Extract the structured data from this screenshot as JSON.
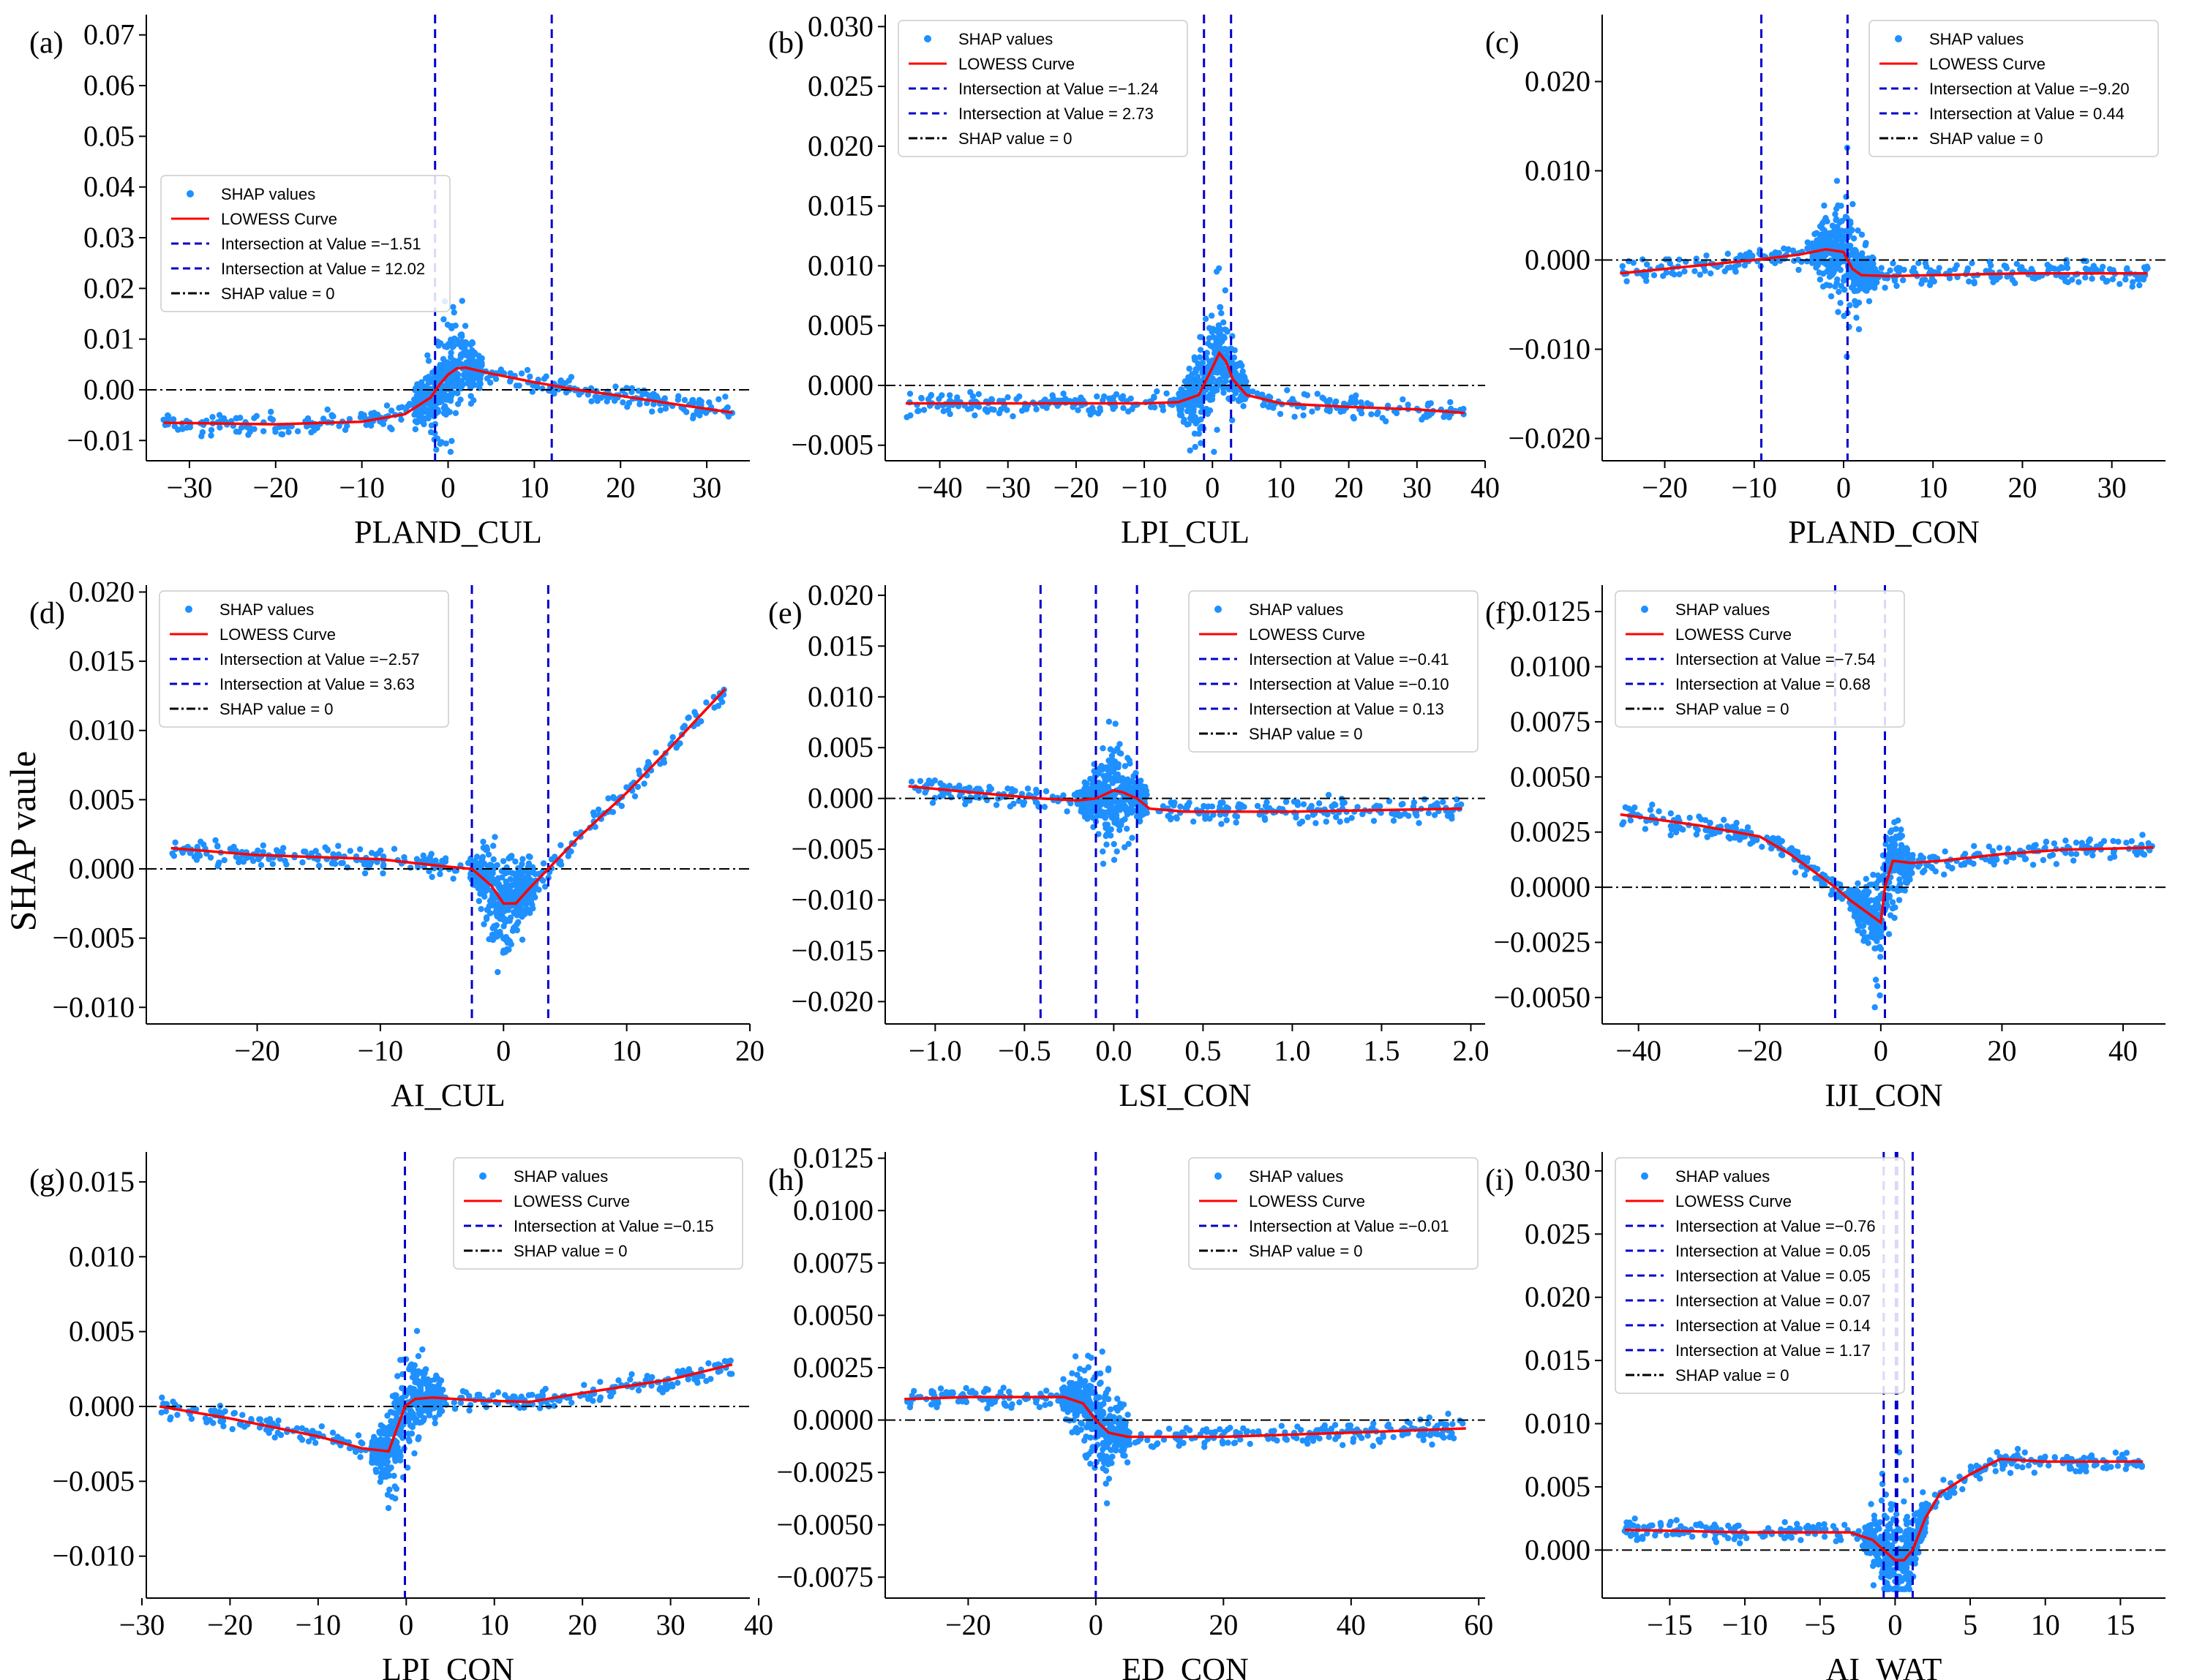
{
  "figure": {
    "ylabel": "SHAP vaule"
  },
  "chart_data": [
    {
      "type": "scatter",
      "label": "(a)",
      "xlabel": "PLAND_CUL",
      "xlim": [
        -35,
        35
      ],
      "ylim": [
        -0.014,
        0.074
      ],
      "xticks": [
        -30,
        -20,
        -10,
        0,
        10,
        20,
        30
      ],
      "yticks": [
        -0.01,
        0.0,
        0.01,
        0.02,
        0.03,
        0.04,
        0.05,
        0.06,
        0.07
      ],
      "ydec": 2,
      "intersections": [
        -1.51,
        12.02
      ],
      "intersection_labels": [
        "Intersection at Value =−1.51",
        "Intersection at Value = 12.02"
      ],
      "legend_loc": "left-middle",
      "lowess": {
        "x": [
          -33,
          -20,
          -10,
          -5,
          -2,
          -1,
          0,
          1,
          2,
          5,
          10,
          15,
          20,
          25,
          33
        ],
        "y": [
          -0.0065,
          -0.0068,
          -0.0063,
          -0.0048,
          -0.0015,
          0.001,
          0.003,
          0.0042,
          0.0044,
          0.0032,
          0.0015,
          0.0,
          -0.0012,
          -0.0025,
          -0.0045
        ]
      }
    },
    {
      "type": "scatter",
      "label": "(b)",
      "xlabel": "LPI_CUL",
      "xlim": [
        -48,
        40
      ],
      "ylim": [
        -0.0063,
        0.031
      ],
      "xticks": [
        -40,
        -30,
        -20,
        -10,
        0,
        10,
        20,
        30,
        40
      ],
      "yticks": [
        -0.005,
        0.0,
        0.005,
        0.01,
        0.015,
        0.02,
        0.025,
        0.03
      ],
      "ydec": 3,
      "intersections": [
        -1.24,
        2.73
      ],
      "intersection_labels": [
        "Intersection at Value =−1.24",
        "Intersection at Value = 2.73"
      ],
      "legend_loc": "upper-left",
      "lowess": {
        "x": [
          -45,
          -30,
          -20,
          -10,
          -5,
          -2,
          0,
          1,
          2,
          3,
          5,
          10,
          20,
          30,
          37
        ],
        "y": [
          -0.0015,
          -0.0015,
          -0.0015,
          -0.0015,
          -0.0014,
          -0.0008,
          0.0015,
          0.0027,
          0.002,
          0.0005,
          -0.0008,
          -0.0015,
          -0.0018,
          -0.002,
          -0.0023
        ]
      }
    },
    {
      "type": "scatter",
      "label": "(c)",
      "xlabel": "PLAND_CON",
      "xlim": [
        -27,
        36
      ],
      "ylim": [
        -0.0225,
        0.0275
      ],
      "xticks": [
        -20,
        -10,
        0,
        10,
        20,
        30
      ],
      "yticks": [
        -0.02,
        -0.01,
        0.0,
        0.01,
        0.02
      ],
      "ydec": 3,
      "intersections": [
        -9.2,
        0.44
      ],
      "intersection_labels": [
        "Intersection at Value =−9.20",
        "Intersection at Value = 0.44"
      ],
      "legend_loc": "upper-right",
      "lowess": {
        "x": [
          -25,
          -15,
          -10,
          -5,
          -2,
          0,
          0.44,
          1,
          2,
          5,
          10,
          20,
          34
        ],
        "y": [
          -0.0015,
          -0.0005,
          0.0,
          0.0006,
          0.0012,
          0.0009,
          0.0,
          -0.001,
          -0.0017,
          -0.0018,
          -0.0017,
          -0.0015,
          -0.0015
        ]
      }
    },
    {
      "type": "scatter",
      "label": "(d)",
      "xlabel": "AI_CUL",
      "xlim": [
        -29,
        20
      ],
      "ylim": [
        -0.0112,
        0.0205
      ],
      "xticks": [
        -20,
        -10,
        0,
        10,
        20
      ],
      "yticks": [
        -0.01,
        -0.005,
        0.0,
        0.005,
        0.01,
        0.015,
        0.02
      ],
      "ydec": 3,
      "intersections": [
        -2.57,
        3.63
      ],
      "intersection_labels": [
        "Intersection at Value =−2.57",
        "Intersection at Value = 3.63"
      ],
      "legend_loc": "upper-left",
      "lowess": {
        "x": [
          -27,
          -20,
          -10,
          -5,
          -2.57,
          -1,
          0,
          1,
          2,
          3.63,
          6,
          10,
          14,
          18
        ],
        "y": [
          0.0015,
          0.001,
          0.0007,
          0.0002,
          0.0,
          -0.0012,
          -0.0025,
          -0.0025,
          -0.0015,
          0.0,
          0.0022,
          0.0055,
          0.0092,
          0.013
        ]
      }
    },
    {
      "type": "scatter",
      "label": "(e)",
      "xlabel": "LSI_CON",
      "xlim": [
        -1.28,
        2.08
      ],
      "ylim": [
        -0.0222,
        0.021
      ],
      "xticks": [
        -1.0,
        -0.5,
        0.0,
        0.5,
        1.0,
        1.5,
        2.0
      ],
      "xdec": 1,
      "yticks": [
        -0.02,
        -0.015,
        -0.01,
        -0.005,
        0.0,
        0.005,
        0.01,
        0.015,
        0.02
      ],
      "ydec": 3,
      "intersections": [
        -0.41,
        -0.1,
        0.13
      ],
      "intersection_labels": [
        "Intersection at Value =−0.41",
        "Intersection at Value =−0.10",
        "Intersection at Value = 0.13"
      ],
      "legend_loc": "upper-right",
      "lowess": {
        "x": [
          -1.15,
          -0.8,
          -0.41,
          -0.2,
          -0.1,
          0.0,
          0.05,
          0.13,
          0.2,
          0.4,
          1.0,
          1.95
        ],
        "y": [
          0.0012,
          0.0006,
          0.0,
          -0.0002,
          0.0,
          0.0008,
          0.0006,
          0.0,
          -0.001,
          -0.0013,
          -0.0013,
          -0.001
        ]
      }
    },
    {
      "type": "scatter",
      "label": "(f)",
      "xlabel": "IJI_CON",
      "xlim": [
        -46,
        47
      ],
      "ylim": [
        -0.0062,
        0.0137
      ],
      "xticks": [
        -40,
        -20,
        0,
        20,
        40
      ],
      "yticks": [
        -0.005,
        -0.0025,
        0.0,
        0.0025,
        0.005,
        0.0075,
        0.01,
        0.0125
      ],
      "ydec": 4,
      "intersections": [
        -7.54,
        0.68
      ],
      "intersection_labels": [
        "Intersection at Value =−7.54",
        "Intersection at Value = 0.68"
      ],
      "legend_loc": "upper-left",
      "lowess": {
        "x": [
          -43,
          -30,
          -20,
          -15,
          -10,
          -7.54,
          -5,
          -2,
          0,
          0.68,
          2,
          5,
          10,
          20,
          30,
          45
        ],
        "y": [
          0.0033,
          0.0028,
          0.0023,
          0.0015,
          0.0005,
          0.0,
          -0.0006,
          -0.0012,
          -0.0016,
          0.0,
          0.0012,
          0.0011,
          0.0012,
          0.0015,
          0.0017,
          0.0018
        ]
      }
    },
    {
      "type": "scatter",
      "label": "(g)",
      "xlabel": "LPI_CON",
      "xlim": [
        -29.5,
        39
      ],
      "ylim": [
        -0.0128,
        0.017
      ],
      "xticks": [
        -30,
        -20,
        -10,
        0,
        10,
        20,
        30,
        40
      ],
      "yticks": [
        -0.01,
        -0.005,
        0.0,
        0.005,
        0.01,
        0.015
      ],
      "ydec": 3,
      "intersections": [
        -0.15
      ],
      "intersection_labels": [
        "Intersection at Value =−0.15"
      ],
      "legend_loc": "upper-right",
      "lowess": {
        "x": [
          -28,
          -20,
          -10,
          -5,
          -2,
          -0.15,
          1,
          3,
          8,
          14,
          20,
          30,
          37
        ],
        "y": [
          0.0,
          -0.0008,
          -0.002,
          -0.0028,
          -0.003,
          0.0,
          0.0005,
          0.0006,
          0.0004,
          0.0003,
          0.0009,
          0.0018,
          0.0028
        ]
      }
    },
    {
      "type": "scatter",
      "label": "(h)",
      "xlabel": "ED_CON",
      "xlim": [
        -33,
        61
      ],
      "ylim": [
        -0.0085,
        0.0128
      ],
      "xticks": [
        -20,
        0,
        20,
        40,
        60
      ],
      "yticks": [
        -0.0075,
        -0.005,
        -0.0025,
        0.0,
        0.0025,
        0.005,
        0.0075,
        0.01,
        0.0125
      ],
      "ydec": 4,
      "intersections": [
        -0.01
      ],
      "intersection_labels": [
        "Intersection at Value =−0.01"
      ],
      "legend_loc": "upper-right",
      "lowess": {
        "x": [
          -30,
          -20,
          -10,
          -5,
          -2,
          -0.01,
          2,
          5,
          10,
          20,
          40,
          58
        ],
        "y": [
          0.001,
          0.0011,
          0.0011,
          0.0011,
          0.0008,
          0.0,
          -0.0006,
          -0.0008,
          -0.0008,
          -0.0008,
          -0.0006,
          -0.0004
        ]
      }
    },
    {
      "type": "scatter",
      "label": "(i)",
      "xlabel": "AI_WAT",
      "xlim": [
        -19.5,
        18
      ],
      "ylim": [
        -0.0038,
        0.0315
      ],
      "xticks": [
        -15,
        -10,
        -5,
        0,
        5,
        10,
        15
      ],
      "yticks": [
        0.0,
        0.005,
        0.01,
        0.015,
        0.02,
        0.025,
        0.03
      ],
      "ydec": 3,
      "intersections": [
        -0.76,
        0.05,
        0.05,
        0.07,
        0.14,
        1.17
      ],
      "intersection_labels": [
        "Intersection at Value =−0.76",
        "Intersection at Value = 0.05",
        "Intersection at Value = 0.05",
        "Intersection at Value = 0.07",
        "Intersection at Value = 0.14",
        "Intersection at Value = 1.17"
      ],
      "legend_loc": "upper-left",
      "lowess": {
        "x": [
          -18,
          -10,
          -5,
          -3,
          -1.5,
          -0.76,
          0,
          0.6,
          1.17,
          2,
          3,
          5,
          7,
          10,
          16.5
        ],
        "y": [
          0.0016,
          0.0014,
          0.0014,
          0.0014,
          0.0008,
          0.0,
          -0.0008,
          -0.0008,
          0.0,
          0.0025,
          0.0045,
          0.006,
          0.0072,
          0.007,
          0.007
        ]
      }
    }
  ],
  "legend_common": {
    "scatter": "SHAP values",
    "lowess": "LOWESS Curve",
    "zero": "SHAP value = 0"
  },
  "colors": {
    "points": "#1e90ff",
    "lowess": "#ff0000",
    "intersection": "#0000cc",
    "zero": "#000000"
  }
}
